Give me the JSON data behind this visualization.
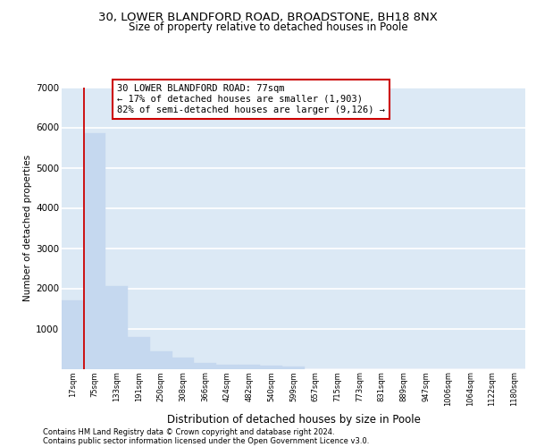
{
  "title1": "30, LOWER BLANDFORD ROAD, BROADSTONE, BH18 8NX",
  "title2": "Size of property relative to detached houses in Poole",
  "xlabel": "Distribution of detached houses by size in Poole",
  "ylabel": "Number of detached properties",
  "bar_color": "#c5d8ef",
  "bar_edge_color": "#c5d8ef",
  "background_color": "#dce9f5",
  "grid_color": "#ffffff",
  "annotation_box_color": "#cc0000",
  "property_line_color": "#cc0000",
  "categories": [
    "17sqm",
    "75sqm",
    "133sqm",
    "191sqm",
    "250sqm",
    "308sqm",
    "366sqm",
    "424sqm",
    "482sqm",
    "540sqm",
    "599sqm",
    "657sqm",
    "715sqm",
    "773sqm",
    "831sqm",
    "889sqm",
    "947sqm",
    "1006sqm",
    "1064sqm",
    "1122sqm",
    "1180sqm"
  ],
  "values": [
    1700,
    5850,
    2050,
    800,
    430,
    280,
    140,
    110,
    95,
    70,
    60,
    0,
    0,
    0,
    0,
    0,
    0,
    0,
    0,
    0,
    0
  ],
  "property_bar_index": 1,
  "annotation_title": "30 LOWER BLANDFORD ROAD: 77sqm",
  "annotation_line1": "← 17% of detached houses are smaller (1,903)",
  "annotation_line2": "82% of semi-detached houses are larger (9,126) →",
  "footnote1": "Contains HM Land Registry data © Crown copyright and database right 2024.",
  "footnote2": "Contains public sector information licensed under the Open Government Licence v3.0.",
  "ylim": [
    0,
    7000
  ],
  "yticks": [
    0,
    1000,
    2000,
    3000,
    4000,
    5000,
    6000,
    7000
  ],
  "title1_fontsize": 9.5,
  "title2_fontsize": 8.5,
  "ylabel_fontsize": 7.5,
  "xlabel_fontsize": 8.5,
  "ytick_fontsize": 7.5,
  "xtick_fontsize": 6.0,
  "annotation_fontsize": 7.5,
  "footnote_fontsize": 6.0,
  "bar_width": 1.0
}
